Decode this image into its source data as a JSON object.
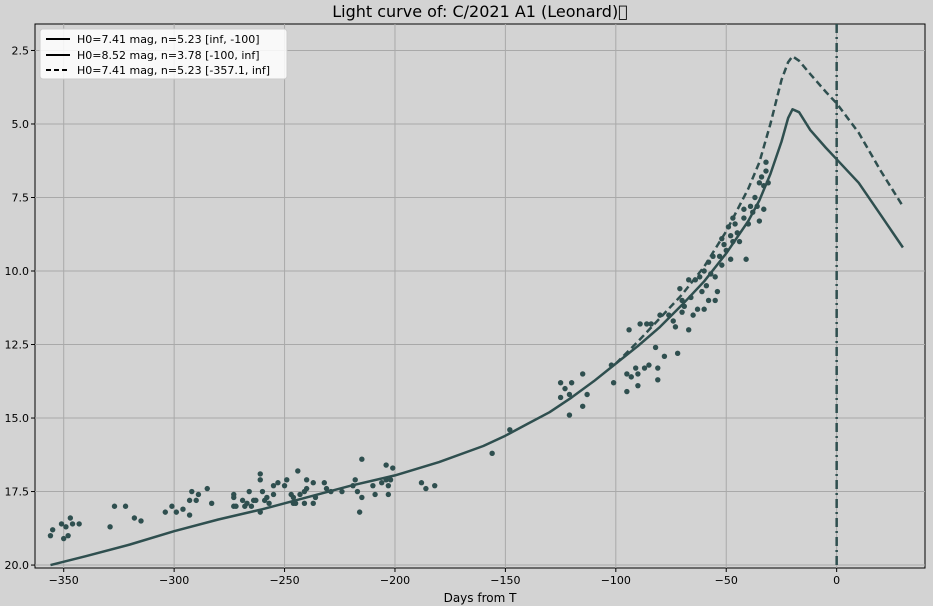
{
  "chart_data": {
    "type": "scatter",
    "title": "Light curve of: C/2021 A1 (Leonard)\u0000",
    "xlabel": "Days from T",
    "ylabel": "",
    "xlim": [
      -363,
      40
    ],
    "ylim": [
      20.1,
      1.6
    ],
    "y_inverted": true,
    "grid": true,
    "legend_position": "top-left",
    "x_ticks": [
      -350,
      -300,
      -250,
      -200,
      -150,
      -100,
      -50,
      0
    ],
    "x_tick_labels": [
      "−350",
      "−300",
      "−250",
      "−200",
      "−150",
      "−100",
      "−50",
      "0"
    ],
    "y_ticks": [
      2.5,
      5.0,
      7.5,
      10.0,
      12.5,
      15.0,
      17.5,
      20.0
    ],
    "y_tick_labels": [
      "2.5",
      "5.0",
      "7.5",
      "10.0",
      "12.5",
      "15.0",
      "17.5",
      "20.0"
    ],
    "colors": {
      "series": "#2f4f4f",
      "background": "#d3d3d3",
      "grid": "#a9a9a9"
    },
    "vline": {
      "x": 0,
      "style": "dash-dot"
    },
    "series": [
      {
        "name": "H0=7.41  mag, n=5.23  [inf, -100]",
        "style": "solid",
        "points": [
          [
            -356,
            20.0
          ],
          [
            -340,
            19.7
          ],
          [
            -320,
            19.3
          ],
          [
            -300,
            18.85
          ],
          [
            -280,
            18.45
          ],
          [
            -260,
            18.1
          ],
          [
            -240,
            17.7
          ],
          [
            -220,
            17.3
          ],
          [
            -200,
            16.95
          ],
          [
            -180,
            16.5
          ],
          [
            -160,
            15.95
          ],
          [
            -150,
            15.6
          ],
          [
            -140,
            15.2
          ],
          [
            -130,
            14.8
          ],
          [
            -120,
            14.3
          ],
          [
            -110,
            13.75
          ],
          [
            -100,
            13.15
          ]
        ]
      },
      {
        "name": "H0=8.52  mag, n=3.78  [-100, inf]",
        "style": "solid",
        "points": [
          [
            -100,
            13.15
          ],
          [
            -90,
            12.55
          ],
          [
            -80,
            11.9
          ],
          [
            -70,
            11.15
          ],
          [
            -60,
            10.35
          ],
          [
            -50,
            9.4
          ],
          [
            -40,
            8.3
          ],
          [
            -35,
            7.6
          ],
          [
            -30,
            6.7
          ],
          [
            -25,
            5.6
          ],
          [
            -22,
            4.8
          ],
          [
            -20,
            4.5
          ],
          [
            -17,
            4.6
          ],
          [
            -12,
            5.2
          ],
          [
            -5,
            5.8
          ],
          [
            0,
            6.2
          ],
          [
            10,
            7.0
          ],
          [
            20,
            8.1
          ],
          [
            30,
            9.2
          ]
        ]
      },
      {
        "name": "H0=7.41  mag, n=5.23  [-357.1,  inf]",
        "style": "dashed",
        "points": [
          [
            -100,
            13.15
          ],
          [
            -90,
            12.4
          ],
          [
            -80,
            11.6
          ],
          [
            -70,
            10.8
          ],
          [
            -60,
            9.85
          ],
          [
            -50,
            8.65
          ],
          [
            -40,
            7.2
          ],
          [
            -35,
            6.3
          ],
          [
            -30,
            5.0
          ],
          [
            -25,
            3.5
          ],
          [
            -22,
            2.9
          ],
          [
            -20,
            2.7
          ],
          [
            -17,
            2.85
          ],
          [
            -12,
            3.3
          ],
          [
            -5,
            3.9
          ],
          [
            0,
            4.3
          ],
          [
            10,
            5.3
          ],
          [
            20,
            6.6
          ],
          [
            30,
            7.8
          ]
        ]
      }
    ],
    "observations": [
      [
        -356,
        19.0
      ],
      [
        -355,
        18.8
      ],
      [
        -351,
        18.6
      ],
      [
        -350,
        19.1
      ],
      [
        -349,
        18.7
      ],
      [
        -348,
        19.0
      ],
      [
        -347,
        18.4
      ],
      [
        -346,
        18.6
      ],
      [
        -343,
        18.6
      ],
      [
        -329,
        18.7
      ],
      [
        -327,
        18.0
      ],
      [
        -322,
        18.0
      ],
      [
        -318,
        18.4
      ],
      [
        -315,
        18.5
      ],
      [
        -304,
        18.2
      ],
      [
        -301,
        18.0
      ],
      [
        -299,
        18.2
      ],
      [
        -296,
        18.1
      ],
      [
        -293,
        17.8
      ],
      [
        -293,
        18.3
      ],
      [
        -292,
        17.5
      ],
      [
        -290,
        17.8
      ],
      [
        -289,
        17.6
      ],
      [
        -285,
        17.4
      ],
      [
        -283,
        17.9
      ],
      [
        -273,
        17.6
      ],
      [
        -273,
        17.7
      ],
      [
        -273,
        18.0
      ],
      [
        -272,
        18.0
      ],
      [
        -269,
        17.8
      ],
      [
        -268,
        18.0
      ],
      [
        -267,
        17.9
      ],
      [
        -266,
        17.5
      ],
      [
        -265,
        18.0
      ],
      [
        -264,
        17.8
      ],
      [
        -263,
        17.8
      ],
      [
        -261,
        16.9
      ],
      [
        -261,
        17.1
      ],
      [
        -261,
        18.2
      ],
      [
        -260,
        17.5
      ],
      [
        -259,
        17.8
      ],
      [
        -258,
        17.7
      ],
      [
        -257,
        17.9
      ],
      [
        -255,
        17.6
      ],
      [
        -255,
        17.3
      ],
      [
        -253,
        17.2
      ],
      [
        -250,
        17.3
      ],
      [
        -249,
        17.1
      ],
      [
        -247,
        17.6
      ],
      [
        -246,
        17.9
      ],
      [
        -246,
        17.7
      ],
      [
        -245,
        17.9
      ],
      [
        -244,
        16.8
      ],
      [
        -243,
        17.6
      ],
      [
        -241,
        17.5
      ],
      [
        -241,
        17.9
      ],
      [
        -240,
        17.1
      ],
      [
        -240,
        17.4
      ],
      [
        -237,
        17.2
      ],
      [
        -237,
        17.9
      ],
      [
        -236,
        17.7
      ],
      [
        -232,
        17.2
      ],
      [
        -231,
        17.4
      ],
      [
        -229,
        17.5
      ],
      [
        -224,
        17.5
      ],
      [
        -219,
        17.3
      ],
      [
        -218,
        17.1
      ],
      [
        -217,
        17.5
      ],
      [
        -216,
        18.2
      ],
      [
        -215,
        16.4
      ],
      [
        -215,
        17.7
      ],
      [
        -210,
        17.3
      ],
      [
        -209,
        17.6
      ],
      [
        -206,
        17.2
      ],
      [
        -204,
        17.1
      ],
      [
        -204,
        16.6
      ],
      [
        -203,
        17.3
      ],
      [
        -203,
        17.6
      ],
      [
        -202,
        17.1
      ],
      [
        -201,
        16.7
      ],
      [
        -188,
        17.2
      ],
      [
        -186,
        17.4
      ],
      [
        -182,
        17.3
      ],
      [
        -156,
        16.2
      ],
      [
        -148,
        15.4
      ],
      [
        -125,
        13.8
      ],
      [
        -125,
        14.3
      ],
      [
        -123,
        14.0
      ],
      [
        -121,
        14.2
      ],
      [
        -121,
        14.9
      ],
      [
        -120,
        13.8
      ],
      [
        -115,
        13.5
      ],
      [
        -115,
        14.6
      ],
      [
        -113,
        14.2
      ],
      [
        -102,
        13.2
      ],
      [
        -101,
        13.8
      ],
      [
        -95,
        14.1
      ],
      [
        -95,
        13.5
      ],
      [
        -94,
        12.0
      ],
      [
        -93,
        13.6
      ],
      [
        -91,
        13.3
      ],
      [
        -90,
        13.9
      ],
      [
        -90,
        13.5
      ],
      [
        -89,
        11.8
      ],
      [
        -87,
        13.3
      ],
      [
        -86,
        11.8
      ],
      [
        -85,
        13.2
      ],
      [
        -84,
        11.8
      ],
      [
        -82,
        12.6
      ],
      [
        -81,
        13.7
      ],
      [
        -81,
        13.3
      ],
      [
        -80,
        11.5
      ],
      [
        -78,
        12.9
      ],
      [
        -76,
        11.5
      ],
      [
        -74,
        11.7
      ],
      [
        -73,
        11.9
      ],
      [
        -72,
        12.8
      ],
      [
        -71,
        10.6
      ],
      [
        -70,
        11.0
      ],
      [
        -70,
        11.4
      ],
      [
        -69,
        11.2
      ],
      [
        -67,
        12.0
      ],
      [
        -67,
        10.3
      ],
      [
        -66,
        10.9
      ],
      [
        -65,
        11.5
      ],
      [
        -64,
        10.3
      ],
      [
        -63,
        11.3
      ],
      [
        -62,
        10.2
      ],
      [
        -61,
        10.7
      ],
      [
        -60,
        11.3
      ],
      [
        -60,
        10.0
      ],
      [
        -59,
        10.5
      ],
      [
        -58,
        9.7
      ],
      [
        -58,
        11.0
      ],
      [
        -57,
        10.1
      ],
      [
        -56,
        9.5
      ],
      [
        -55,
        11.0
      ],
      [
        -55,
        10.2
      ],
      [
        -54,
        10.7
      ],
      [
        -53,
        9.5
      ],
      [
        -52,
        9.8
      ],
      [
        -52,
        8.9
      ],
      [
        -51,
        9.1
      ],
      [
        -50,
        9.3
      ],
      [
        -49,
        8.5
      ],
      [
        -48,
        9.6
      ],
      [
        -48,
        8.8
      ],
      [
        -47,
        8.2
      ],
      [
        -47,
        9.0
      ],
      [
        -46,
        8.4
      ],
      [
        -45,
        8.7
      ],
      [
        -44,
        9.0
      ],
      [
        -42,
        8.2
      ],
      [
        -42,
        7.9
      ],
      [
        -41,
        9.6
      ],
      [
        -40,
        8.4
      ],
      [
        -39,
        7.8
      ],
      [
        -38,
        8.0
      ],
      [
        -37,
        7.5
      ],
      [
        -36,
        7.8
      ],
      [
        -35,
        8.3
      ],
      [
        -35,
        7.0
      ],
      [
        -34,
        6.8
      ],
      [
        -33,
        7.1
      ],
      [
        -32,
        6.3
      ],
      [
        -32,
        6.6
      ],
      [
        -31,
        7.0
      ],
      [
        -33,
        7.9
      ]
    ]
  }
}
